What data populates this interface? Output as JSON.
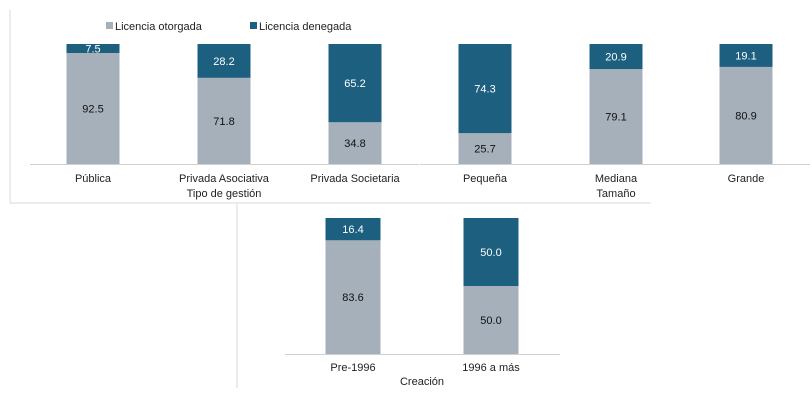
{
  "colors": {
    "granted": "#A5B0BB",
    "denied": "#1C5F7F",
    "frame": "#D9D9D9",
    "axis": "#D0D0D0"
  },
  "legend": {
    "granted": "Licencia otorgada",
    "denied": "Licencia denegada"
  },
  "chart_data": [
    {
      "type": "bar",
      "stacked": true,
      "percent": true,
      "xlabel": "Tipo de gestión",
      "categories": [
        "Pública",
        "Privada Asociativa",
        "Privada Societaria"
      ],
      "series": [
        {
          "name": "Licencia otorgada",
          "values": [
            92.5,
            71.8,
            34.8
          ]
        },
        {
          "name": "Licencia denegada",
          "values": [
            7.5,
            28.2,
            65.2
          ]
        }
      ],
      "ylim": [
        0,
        100
      ]
    },
    {
      "type": "bar",
      "stacked": true,
      "percent": true,
      "xlabel": "Tamaño",
      "categories": [
        "Pequeña",
        "Mediana",
        "Grande"
      ],
      "series": [
        {
          "name": "Licencia otorgada",
          "values": [
            25.7,
            79.1,
            80.9
          ]
        },
        {
          "name": "Licencia denegada",
          "values": [
            74.3,
            20.9,
            19.1
          ]
        }
      ],
      "ylim": [
        0,
        100
      ]
    },
    {
      "type": "bar",
      "stacked": true,
      "percent": true,
      "xlabel": "Creación",
      "categories": [
        "Pre-1996",
        "1996 a más"
      ],
      "series": [
        {
          "name": "Licencia otorgada",
          "values": [
            83.6,
            50.0
          ]
        },
        {
          "name": "Licencia denegada",
          "values": [
            16.4,
            50.0
          ]
        }
      ],
      "ylim": [
        0,
        100
      ]
    }
  ]
}
